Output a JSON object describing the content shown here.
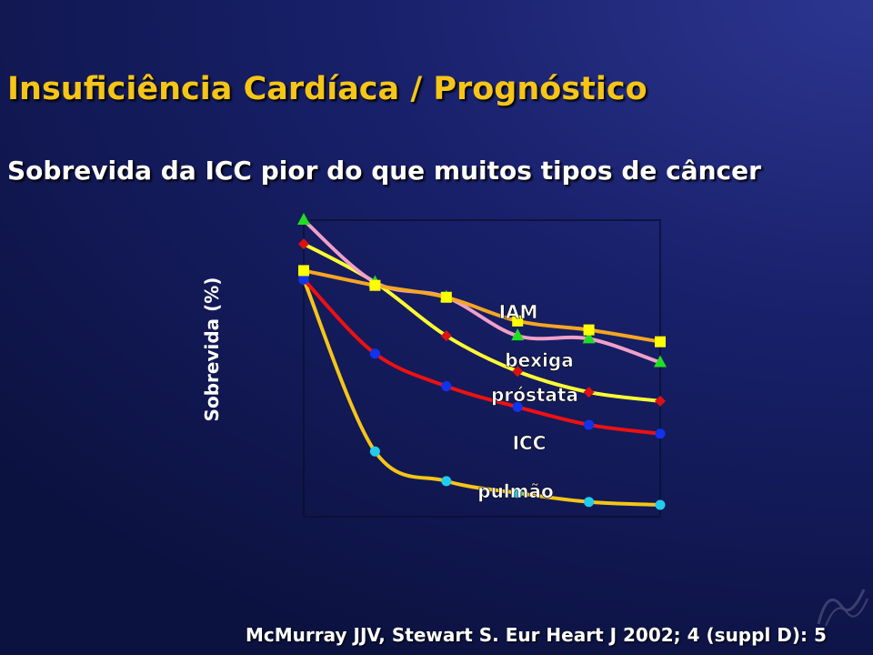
{
  "slide": {
    "title": "Insuficiência Cardíaca / Prognóstico",
    "subtitle": "Sobrevida da ICC pior do que muitos tipos de câncer",
    "citation": "McMurray JJV, Stewart S. Eur Heart J 2002; 4 (suppl D): 5"
  },
  "chart_data": {
    "type": "line",
    "title": "",
    "xlabel": "",
    "ylabel": "Sobrevida (%)",
    "ylim": [
      0,
      100
    ],
    "grid": false,
    "x": [
      0,
      1,
      2,
      3,
      4,
      5
    ],
    "series": [
      {
        "name": "IAM",
        "marker": "square",
        "color": "#f5a623",
        "marker_color": "#ffff00",
        "values": [
          83,
          78,
          74,
          66,
          63,
          59
        ]
      },
      {
        "name": "bexiga",
        "marker": "triangle",
        "color": "#f0a0c8",
        "marker_color": "#22dd22",
        "values": [
          100,
          79,
          74,
          61,
          60,
          52
        ]
      },
      {
        "name": "próstata",
        "marker": "diamond",
        "color": "#ffff33",
        "marker_color": "#dd1111",
        "values": [
          92,
          79,
          61,
          49,
          42,
          39
        ]
      },
      {
        "name": "ICC",
        "marker": "circle",
        "color": "#ee1111",
        "marker_color": "#1133ee",
        "values": [
          80,
          55,
          44,
          37,
          31,
          28
        ]
      },
      {
        "name": "pulmão",
        "marker": "circle",
        "color": "#f5c518",
        "marker_color": "#22ccee",
        "values": [
          80,
          22,
          12,
          8,
          5,
          4
        ]
      }
    ]
  }
}
